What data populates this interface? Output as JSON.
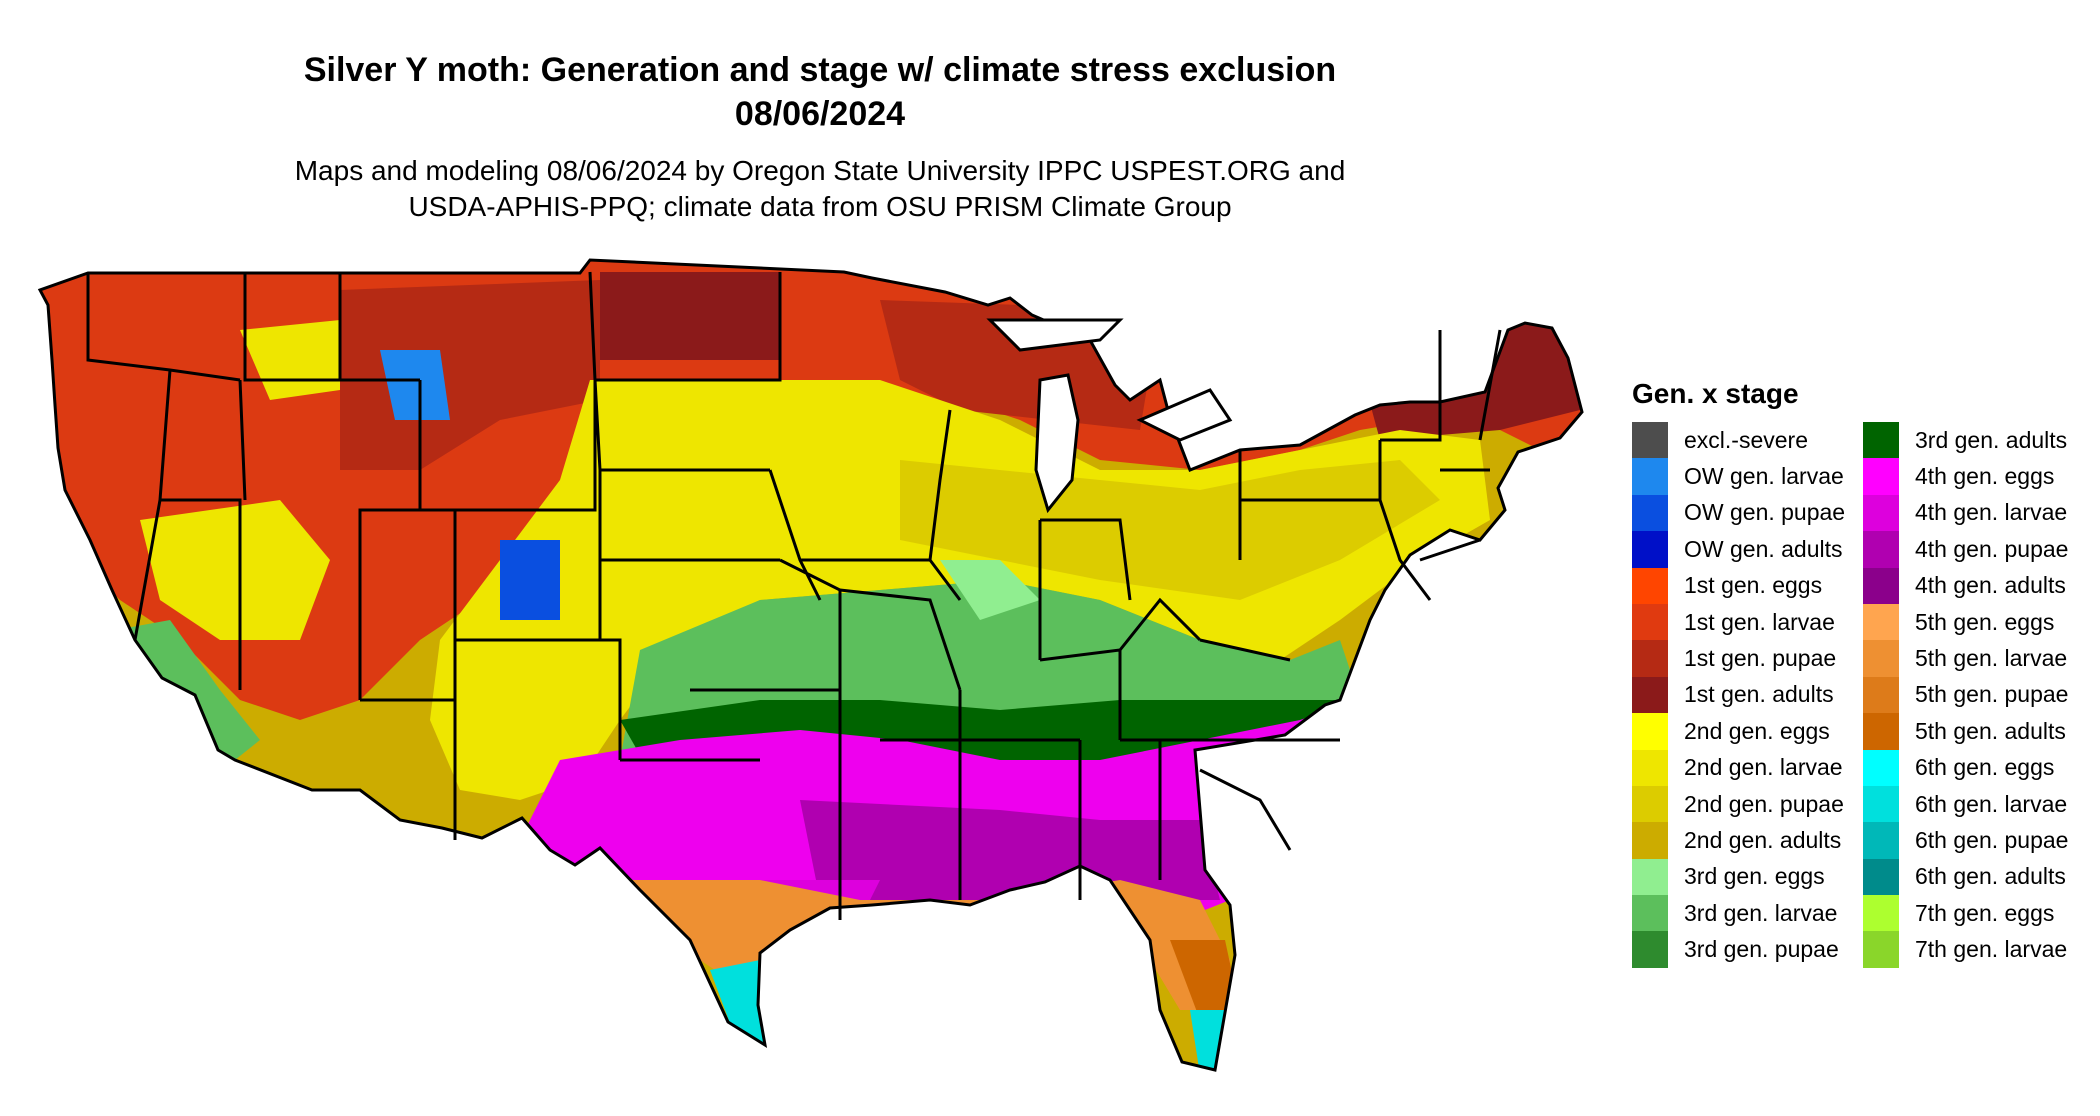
{
  "title_line1": "Silver Y moth: Generation and stage w/ climate stress exclusion",
  "title_line2": "08/06/2024",
  "subtitle_line1": "Maps and modeling 08/06/2024 by Oregon State University IPPC USPEST.ORG and",
  "subtitle_line2": "USDA-APHIS-PPQ; climate data from OSU PRISM Climate Group",
  "legend": {
    "title": "Gen. x stage",
    "col1": [
      {
        "label": "excl.-severe",
        "color": "#4d4d4d"
      },
      {
        "label": "OW gen. larvae",
        "color": "#1e88ee"
      },
      {
        "label": "OW gen. pupae",
        "color": "#0a4fe0"
      },
      {
        "label": "OW gen. adults",
        "color": "#0010c8"
      },
      {
        "label": "1st gen. eggs",
        "color": "#ff4500"
      },
      {
        "label": "1st gen. larvae",
        "color": "#e03a10"
      },
      {
        "label": "1st gen. pupae",
        "color": "#b52a14"
      },
      {
        "label": "1st gen. adults",
        "color": "#8b1a1a"
      },
      {
        "label": "2nd gen. eggs",
        "color": "#ffff00"
      },
      {
        "label": "2nd gen. larvae",
        "color": "#eee600"
      },
      {
        "label": "2nd gen. pupae",
        "color": "#dccc00"
      },
      {
        "label": "2nd gen. adults",
        "color": "#ccac00"
      },
      {
        "label": "3rd gen. eggs",
        "color": "#90ee90"
      },
      {
        "label": "3rd gen. larvae",
        "color": "#5cbf5c"
      },
      {
        "label": "3rd gen. pupae",
        "color": "#2e8b2e"
      }
    ],
    "col2": [
      {
        "label": "3rd gen. adults",
        "color": "#006400"
      },
      {
        "label": "4th gen. eggs",
        "color": "#ff00ff"
      },
      {
        "label": "4th gen. larvae",
        "color": "#dd00dd"
      },
      {
        "label": "4th gen. pupae",
        "color": "#b000b0"
      },
      {
        "label": "4th gen. adults",
        "color": "#8b008b"
      },
      {
        "label": "5th gen. eggs",
        "color": "#ffa54f"
      },
      {
        "label": "5th gen. larvae",
        "color": "#ee9032"
      },
      {
        "label": "5th gen. pupae",
        "color": "#dd7b1a"
      },
      {
        "label": "5th gen. adults",
        "color": "#cd6600"
      },
      {
        "label": "6th gen. eggs",
        "color": "#00ffff"
      },
      {
        "label": "6th gen. larvae",
        "color": "#00e0dd"
      },
      {
        "label": "6th gen. pupae",
        "color": "#00b8b8"
      },
      {
        "label": "6th gen. adults",
        "color": "#008b8b"
      },
      {
        "label": "7th gen. eggs",
        "color": "#adff2f"
      },
      {
        "label": "7th gen. larvae",
        "color": "#8ad62a"
      }
    ]
  }
}
